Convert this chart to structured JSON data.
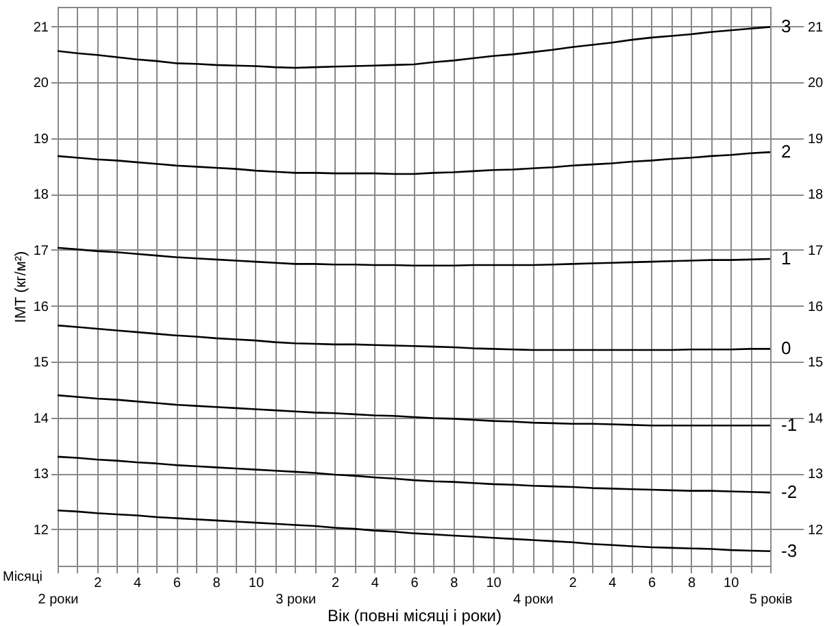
{
  "chart_data": {
    "type": "line",
    "xlabel": "Вік (повні місяці і роки)",
    "ylabel": "ІМТ (кг/м²)",
    "annotations": [
      "Місяці"
    ],
    "categories": [
      "2 роки",
      null,
      "2",
      null,
      "4",
      null,
      "6",
      null,
      "8",
      null,
      "10",
      null,
      "3 роки",
      null,
      "2",
      null,
      "4",
      null,
      "6",
      null,
      "8",
      null,
      "10",
      null,
      "4 роки",
      null,
      "2",
      null,
      "4",
      null,
      "6",
      null,
      "8",
      null,
      "10",
      null,
      "5 років"
    ],
    "series": [
      {
        "name": "3",
        "color": "#000000",
        "values": [
          20.56,
          20.52,
          20.49,
          20.45,
          20.41,
          20.38,
          20.34,
          20.33,
          20.31,
          20.3,
          20.29,
          20.27,
          20.26,
          20.27,
          20.28,
          20.29,
          20.3,
          20.31,
          20.32,
          20.36,
          20.39,
          20.43,
          20.47,
          20.5,
          20.54,
          20.58,
          20.63,
          20.67,
          20.71,
          20.76,
          20.8,
          20.83,
          20.86,
          20.9,
          20.93,
          20.96,
          20.99
        ]
      },
      {
        "name": "2",
        "color": "#000000",
        "values": [
          18.68,
          18.65,
          18.62,
          18.6,
          18.57,
          18.54,
          18.51,
          18.49,
          18.47,
          18.45,
          18.42,
          18.4,
          18.38,
          18.38,
          18.37,
          18.37,
          18.37,
          18.36,
          18.36,
          18.38,
          18.39,
          18.41,
          18.43,
          18.44,
          18.46,
          18.48,
          18.51,
          18.53,
          18.55,
          18.58,
          18.6,
          18.63,
          18.65,
          18.68,
          18.7,
          18.73,
          18.75
        ]
      },
      {
        "name": "1",
        "color": "#000000",
        "values": [
          17.04,
          17.01,
          16.98,
          16.96,
          16.93,
          16.9,
          16.87,
          16.85,
          16.83,
          16.81,
          16.79,
          16.77,
          16.75,
          16.75,
          16.74,
          16.74,
          16.73,
          16.73,
          16.72,
          16.72,
          16.72,
          16.73,
          16.73,
          16.73,
          16.73,
          16.74,
          16.75,
          16.76,
          16.77,
          16.78,
          16.79,
          16.8,
          16.81,
          16.82,
          16.82,
          16.83,
          16.84
        ]
      },
      {
        "name": "0",
        "color": "#000000",
        "values": [
          15.65,
          15.62,
          15.59,
          15.56,
          15.53,
          15.5,
          15.47,
          15.45,
          15.42,
          15.4,
          15.38,
          15.35,
          15.33,
          15.32,
          15.31,
          15.31,
          15.3,
          15.29,
          15.28,
          15.27,
          15.26,
          15.24,
          15.23,
          15.22,
          15.21,
          15.21,
          15.21,
          15.21,
          15.21,
          15.21,
          15.21,
          15.21,
          15.22,
          15.22,
          15.22,
          15.23,
          15.23
        ]
      },
      {
        "name": "-1",
        "color": "#000000",
        "values": [
          14.4,
          14.37,
          14.34,
          14.32,
          14.29,
          14.26,
          14.23,
          14.21,
          14.19,
          14.17,
          14.15,
          14.13,
          14.11,
          14.09,
          14.08,
          14.06,
          14.04,
          14.03,
          14.01,
          13.99,
          13.98,
          13.96,
          13.94,
          13.93,
          13.91,
          13.9,
          13.89,
          13.89,
          13.88,
          13.87,
          13.86,
          13.86,
          13.86,
          13.86,
          13.86,
          13.86,
          13.86
        ]
      },
      {
        "name": "-2",
        "color": "#000000",
        "values": [
          13.3,
          13.28,
          13.25,
          13.23,
          13.2,
          13.18,
          13.15,
          13.13,
          13.11,
          13.09,
          13.07,
          13.05,
          13.03,
          13.01,
          12.98,
          12.96,
          12.93,
          12.91,
          12.88,
          12.86,
          12.85,
          12.83,
          12.81,
          12.8,
          12.78,
          12.77,
          12.76,
          12.74,
          12.73,
          12.72,
          12.71,
          12.7,
          12.69,
          12.69,
          12.68,
          12.67,
          12.66
        ]
      },
      {
        "name": "-3",
        "color": "#000000",
        "values": [
          12.34,
          12.32,
          12.29,
          12.27,
          12.25,
          12.22,
          12.2,
          12.18,
          12.16,
          12.14,
          12.12,
          12.1,
          12.08,
          12.06,
          12.03,
          12.01,
          11.98,
          11.96,
          11.93,
          11.91,
          11.89,
          11.87,
          11.85,
          11.83,
          11.81,
          11.79,
          11.77,
          11.74,
          11.72,
          11.7,
          11.68,
          11.67,
          11.66,
          11.65,
          11.63,
          11.62,
          11.61
        ]
      }
    ],
    "ylim": [
      11.35,
      21.35
    ],
    "yticks": [
      12,
      13,
      14,
      15,
      16,
      17,
      18,
      19,
      20,
      21
    ],
    "y2lim": [
      11.35,
      21.35
    ],
    "y2ticks": [
      12,
      13,
      14,
      15,
      16,
      17,
      18,
      19,
      20,
      21
    ],
    "grid": true,
    "marker": "none",
    "line_style": "solid"
  }
}
